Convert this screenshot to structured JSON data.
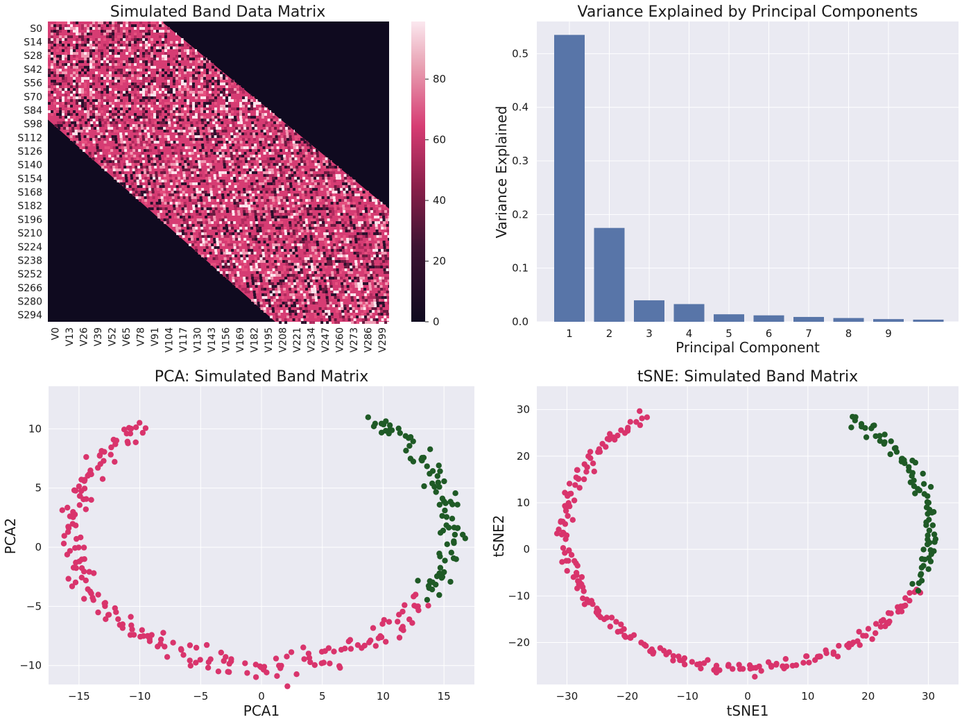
{
  "colors": {
    "panel_bg": "#eaeaf2",
    "grid": "#ffffff",
    "bar": "#5875a8",
    "pink": "#d9346c",
    "green": "#1f5a26",
    "heat_dark": "#0f0a1f",
    "heat_mid": "#d63c73",
    "heat_light": "#fbe8ef"
  },
  "chart_data": [
    {
      "id": "heatmap",
      "type": "heatmap",
      "title": "Simulated Band Data Matrix",
      "y_ticks": [
        "S0",
        "S14",
        "S28",
        "S42",
        "S56",
        "S70",
        "S84",
        "S98",
        "S112",
        "S126",
        "S140",
        "S154",
        "S168",
        "S182",
        "S196",
        "S210",
        "S224",
        "S238",
        "S252",
        "S266",
        "S280",
        "S294"
      ],
      "x_ticks": [
        "V0",
        "V13",
        "V26",
        "V39",
        "V52",
        "V65",
        "V78",
        "V91",
        "V104",
        "V117",
        "V130",
        "V143",
        "V156",
        "V169",
        "V182",
        "V195",
        "V208",
        "V221",
        "V234",
        "V247",
        "V260",
        "V273",
        "V286",
        "V299"
      ],
      "n_rows": 300,
      "n_cols": 300,
      "band": {
        "upper_edge_start": [
          0,
          100
        ],
        "upper_edge_end": [
          187,
          300
        ],
        "lower_edge_start": [
          98,
          0
        ],
        "lower_edge_end": [
          300,
          200
        ]
      },
      "colorbar": {
        "ticks": [
          "0",
          "20",
          "40",
          "60",
          "80"
        ],
        "range": [
          0,
          99
        ]
      }
    },
    {
      "id": "variance",
      "type": "bar",
      "title": "Variance Explained by Principal Components",
      "xlabel": "Principal Component",
      "ylabel": "Variance Explained",
      "x_tick_labels": [
        "1",
        "2",
        "3",
        "4",
        "5",
        "6",
        "7",
        "8",
        "9"
      ],
      "y_ticks": [
        "0.0",
        "0.1",
        "0.2",
        "0.3",
        "0.4",
        "0.5"
      ],
      "ylim": [
        0,
        0.56
      ],
      "values": [
        0.535,
        0.175,
        0.04,
        0.033,
        0.014,
        0.012,
        0.009,
        0.007,
        0.005,
        0.004
      ]
    },
    {
      "id": "pca",
      "type": "scatter",
      "title": "PCA: Simulated Band Matrix",
      "xlabel": "PCA1",
      "ylabel": "PCA2",
      "x_ticks": [
        "−15",
        "−10",
        "−5",
        "0",
        "5",
        "10",
        "15"
      ],
      "y_ticks": [
        "−10",
        "−5",
        "0",
        "5",
        "10"
      ],
      "xlim": [
        -17.5,
        17.5
      ],
      "ylim": [
        -11.6,
        13.6
      ],
      "shape": {
        "center": [
          0,
          1.5
        ],
        "rx": 15.6,
        "ry": 11.5,
        "gap_from_deg": 54,
        "gap_to_deg": 128,
        "green_from_deg": -30,
        "n_points": 300,
        "jitter": 0.55
      }
    },
    {
      "id": "tsne",
      "type": "scatter",
      "title": "tSNE: Simulated Band Matrix",
      "xlabel": "tSNE1",
      "ylabel": "tSNE2",
      "x_ticks": [
        "−30",
        "−20",
        "−10",
        "0",
        "10",
        "20",
        "30"
      ],
      "y_ticks": [
        "−20",
        "−10",
        "0",
        "10",
        "20",
        "30"
      ],
      "xlim": [
        -35,
        35
      ],
      "ylim": [
        -29,
        35
      ],
      "shape": {
        "center": [
          0,
          4
        ],
        "rx": 30.5,
        "ry": 29.5,
        "gap_from_deg": 56,
        "gap_to_deg": 124,
        "green_from_deg": -24,
        "n_points": 300,
        "jitter": 0.6
      }
    }
  ]
}
